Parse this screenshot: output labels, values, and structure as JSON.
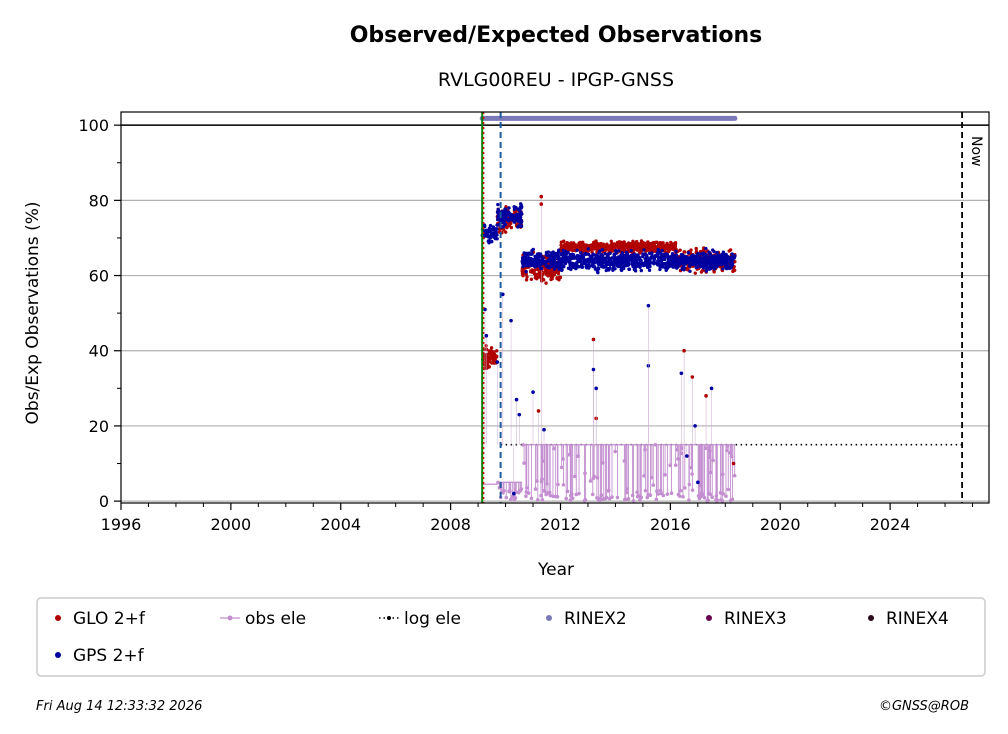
{
  "chart_data": {
    "type": "scatter",
    "title": "Observed/Expected Observations",
    "subtitle": "RVLG00REU - IPGP-GNSS",
    "xlabel": "Year",
    "ylabel": "Obs/Exp Observations (%)",
    "xlim": [
      1996,
      2027.6
    ],
    "ylim": [
      -0.5,
      103.5
    ],
    "xticks": [
      1996,
      2000,
      2004,
      2008,
      2012,
      2016,
      2020,
      2024
    ],
    "yticks": [
      0,
      20,
      40,
      60,
      80,
      100
    ],
    "grid": "y",
    "reference_lines": {
      "full_level": 100,
      "now_year": 2026.62,
      "now_label": "Now",
      "green_line_year": 2009.15,
      "red_line_year": 2009.2,
      "blue_dashed_year": 2009.82
    },
    "log_ele": {
      "name": "log ele",
      "y": 15,
      "x_start": 2009.82,
      "x_end": 2026.62,
      "color": "#000000"
    },
    "rinex2_band": {
      "name": "RINEX2",
      "y": 101.8,
      "x_start": 2009.15,
      "x_end": 2018.35,
      "color": "#7b78b8"
    },
    "series": [
      {
        "name": "GLO 2+f",
        "color": "#b00000",
        "segments": [
          {
            "x": [
              2009.15,
              2009.7
            ],
            "y_center": 38,
            "spread": 4
          },
          {
            "x": [
              2009.7,
              2010.6
            ],
            "y_center": 75,
            "spread": 4
          },
          {
            "x": [
              2010.6,
              2012.0
            ],
            "y_center": 62,
            "spread": 5
          },
          {
            "x": [
              2012.0,
              2016.2
            ],
            "y_center": 67.5,
            "spread": 2
          },
          {
            "x": [
              2016.2,
              2018.35
            ],
            "y_center": 64,
            "spread": 4
          }
        ],
        "outliers": [
          [
            2011.3,
            81
          ],
          [
            2011.3,
            79
          ],
          [
            2011.2,
            24
          ],
          [
            2013.2,
            43
          ],
          [
            2013.3,
            22
          ],
          [
            2016.5,
            40
          ],
          [
            2016.8,
            33
          ],
          [
            2018.3,
            10
          ],
          [
            2017.3,
            28
          ]
        ]
      },
      {
        "name": "GPS 2+f",
        "color": "#0000a0",
        "segments": [
          {
            "x": [
              2009.15,
              2009.7
            ],
            "y_center": 71,
            "spread": 3
          },
          {
            "x": [
              2009.7,
              2010.6
            ],
            "y_center": 76,
            "spread": 4
          },
          {
            "x": [
              2010.6,
              2018.35
            ],
            "y_center": 64,
            "spread": 3.5
          }
        ],
        "outliers": [
          [
            2009.25,
            51
          ],
          [
            2009.3,
            44
          ],
          [
            2009.7,
            37
          ],
          [
            2009.9,
            55
          ],
          [
            2010.2,
            48
          ],
          [
            2010.4,
            27
          ],
          [
            2010.5,
            23
          ],
          [
            2011.0,
            29
          ],
          [
            2011.4,
            19
          ],
          [
            2013.2,
            35
          ],
          [
            2013.3,
            30
          ],
          [
            2015.2,
            36
          ],
          [
            2015.2,
            52
          ],
          [
            2016.4,
            34
          ],
          [
            2016.6,
            12
          ],
          [
            2016.9,
            20
          ],
          [
            2017.5,
            30
          ],
          [
            2010.3,
            2
          ],
          [
            2017.0,
            5
          ]
        ]
      },
      {
        "name": "obs ele",
        "color": "#c38fd0",
        "segments": [
          {
            "x": [
              2009.15,
              2009.7
            ],
            "y_level": 4.5,
            "dips": false
          },
          {
            "x": [
              2009.7,
              2010.6
            ],
            "y_level": 5,
            "dips": true
          },
          {
            "x": [
              2010.6,
              2018.35
            ],
            "y_level": 15,
            "dips": true
          }
        ]
      },
      {
        "name": "RINEX3",
        "color": "#6a0050"
      },
      {
        "name": "RINEX4",
        "color": "#2a0a1a"
      }
    ],
    "legend": {
      "position": "bottom",
      "entries": [
        {
          "label": "GLO 2+f",
          "color": "#b00000",
          "marker": "dot"
        },
        {
          "label": "obs ele",
          "color": "#c38fd0",
          "marker": "line-dot"
        },
        {
          "label": "log ele",
          "color": "#000000",
          "marker": "dotted"
        },
        {
          "label": "RINEX2",
          "color": "#7b78b8",
          "marker": "dot"
        },
        {
          "label": "RINEX3",
          "color": "#6a0050",
          "marker": "dot"
        },
        {
          "label": "RINEX4",
          "color": "#2a0a1a",
          "marker": "dot"
        },
        {
          "label": "GPS 2+f",
          "color": "#0000a0",
          "marker": "dot"
        }
      ]
    }
  },
  "footer": {
    "timestamp": "Fri Aug 14 12:33:32 2026",
    "credit": "©GNSS@ROB"
  }
}
